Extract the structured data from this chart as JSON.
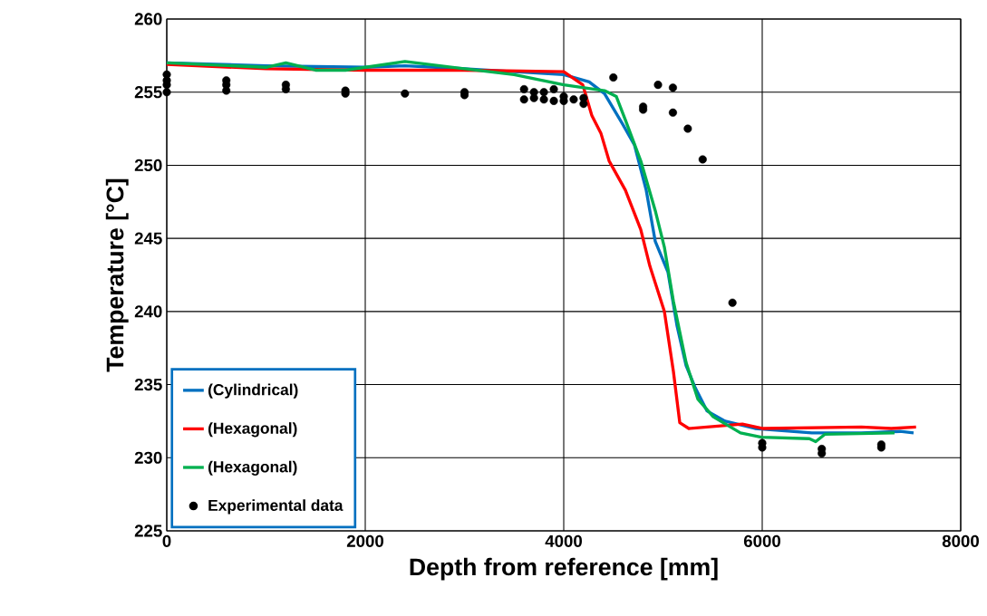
{
  "chart_data": {
    "type": "line",
    "xlabel": "Depth from reference [mm]",
    "ylabel": "Temperature [°C]",
    "xlim": [
      0,
      8000
    ],
    "ylim": [
      225,
      260
    ],
    "xticks": [
      0,
      2000,
      4000,
      6000,
      8000
    ],
    "yticks": [
      225,
      230,
      235,
      240,
      245,
      250,
      255,
      260
    ],
    "grid": true,
    "legend": "bottom left",
    "marker": "none",
    "line_style": "solid",
    "series": [
      {
        "name": "(Cylindrical)",
        "color": "#0070c0",
        "x": [
          0,
          1000,
          2000,
          2400,
          3000,
          3500,
          4000,
          4256,
          4411,
          4594,
          4712,
          4831,
          4922,
          5050,
          5142,
          5233,
          5324,
          5443,
          5626,
          5927,
          6500,
          7000,
          7388,
          7525
        ],
        "values": [
          257.0,
          256.8,
          256.7,
          256.8,
          256.6,
          256.4,
          256.2,
          255.7,
          254.9,
          252.8,
          251.4,
          248.3,
          244.8,
          242.7,
          239.0,
          236.3,
          234.8,
          233.2,
          232.5,
          232.0,
          231.7,
          231.7,
          231.8,
          231.7
        ]
      },
      {
        "name": "(Hexagonal)",
        "color": "#ff0000",
        "x": [
          0,
          1000,
          2000,
          3000,
          4000,
          4192,
          4283,
          4374,
          4457,
          4621,
          4776,
          4868,
          5014,
          5105,
          5169,
          5260,
          5800,
          6000,
          7000,
          7300,
          7550
        ],
        "values": [
          256.9,
          256.6,
          256.5,
          256.5,
          256.4,
          255.5,
          253.4,
          252.2,
          250.3,
          248.3,
          245.6,
          243.1,
          240.0,
          235.9,
          232.4,
          232.0,
          232.3,
          232.0,
          232.1,
          232.0,
          232.1
        ]
      },
      {
        "name": "(Hexagonal)",
        "color": "#00b050",
        "x": [
          0,
          1000,
          1200,
          1500,
          1800,
          2400,
          3000,
          3500,
          4000,
          4411,
          4530,
          4621,
          4776,
          4922,
          5014,
          5105,
          5233,
          5352,
          5507,
          5781,
          5991,
          6475,
          6539,
          6630,
          7333
        ],
        "values": [
          257.0,
          256.7,
          257.0,
          256.5,
          256.5,
          257.1,
          256.6,
          256.2,
          255.5,
          255.1,
          254.7,
          253.1,
          250.3,
          246.9,
          244.4,
          240.7,
          236.5,
          234.0,
          232.8,
          231.7,
          231.4,
          231.3,
          231.1,
          231.6,
          231.7
        ]
      },
      {
        "name": "Experimental data",
        "type": "scatter",
        "marker": "circle",
        "color": "#000000",
        "x": [
          0,
          0,
          0,
          0,
          600,
          600,
          600,
          1200,
          1200,
          1800,
          1800,
          2400,
          3000,
          3000,
          3600,
          3600,
          3700,
          3700,
          3800,
          3800,
          3900,
          3900,
          4000,
          4000,
          4100,
          4200,
          4200,
          4500,
          4800,
          4800,
          4950,
          5100,
          5100,
          5250,
          5400,
          5700,
          6000,
          6000,
          6600,
          6600,
          7200,
          7200
        ],
        "values": [
          256.2,
          255.8,
          255.5,
          255.0,
          255.8,
          255.5,
          255.1,
          255.5,
          255.2,
          255.1,
          254.9,
          254.9,
          255.0,
          254.8,
          255.2,
          254.5,
          255.0,
          254.6,
          255.0,
          254.5,
          255.2,
          254.4,
          254.7,
          254.4,
          254.5,
          254.6,
          254.2,
          256.0,
          254.0,
          253.8,
          255.5,
          255.3,
          253.6,
          252.5,
          250.4,
          240.6,
          231.0,
          230.7,
          230.6,
          230.3,
          230.9,
          230.7
        ]
      }
    ]
  }
}
